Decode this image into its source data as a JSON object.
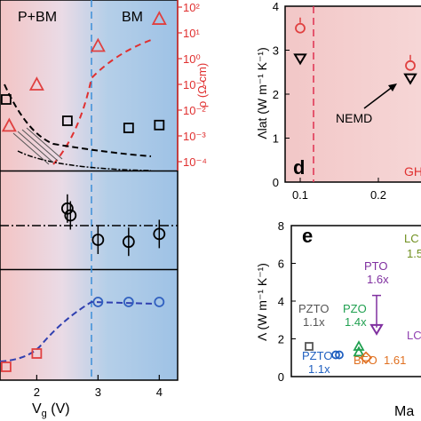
{
  "chart_data": [
    {
      "type": "scatter",
      "panel": "left-stack",
      "top_subplot": {
        "region_labels": [
          "P+BM",
          "BM"
        ],
        "right_ylabel": "ρ (Ω cm)",
        "right_ylim_log": [
          -4,
          2
        ],
        "right_ticks": [
          "10²",
          "10¹",
          "10⁰",
          "10⁻¹",
          "10⁻²",
          "10⁻³",
          "10⁻⁴"
        ],
        "series": [
          {
            "marker": "triangle",
            "color": "#e04040",
            "x": [
              1.55,
              2.0,
              3.0,
              4.0
            ],
            "log_y": [
              -2.6,
              -1.0,
              0.5,
              1.55
            ]
          },
          {
            "marker": "square",
            "color": "#000000",
            "x": [
              1.0,
              1.5,
              2.5,
              3.5,
              4.0
            ],
            "y": [
              0.6,
              0.5,
              0.35,
              0.3,
              0.32
            ]
          }
        ]
      },
      "middle_subplot": {
        "series": [
          {
            "marker": "circle",
            "color": "#000000",
            "x": [
              2.5,
              2.55,
              3.0,
              3.5,
              4.0
            ],
            "y": [
              0.62,
              0.55,
              0.3,
              0.28,
              0.36
            ]
          }
        ]
      },
      "bottom_subplot": {
        "xlabel": "V_g (V)",
        "x_ticks": [
          "2",
          "3",
          "4"
        ],
        "xlim": [
          1.4,
          4.3
        ],
        "series": [
          {
            "marker": "square",
            "color": "#e04040",
            "x": [
              1.5,
              2.0
            ],
            "y": [
              0.15,
              0.3
            ]
          },
          {
            "marker": "circle",
            "color": "#3060c0",
            "x": [
              3.0,
              3.5,
              4.0
            ],
            "y": [
              0.88,
              0.88,
              0.88
            ]
          }
        ],
        "dashed_vertical_x": 3.0
      }
    },
    {
      "type": "scatter",
      "panel": "d",
      "letter": "d",
      "ylabel": "Λlat (W m⁻¹ K⁻¹)",
      "ylim": [
        0,
        4
      ],
      "y_ticks": [
        "0",
        "1",
        "2",
        "3",
        "4"
      ],
      "x_ticks": [
        "0.1",
        "0.2"
      ],
      "annotation": "NEMD",
      "region_text": "GH",
      "series": [
        {
          "marker": "circle",
          "color": "#e04040",
          "x": [
            0.1,
            0.25
          ],
          "y": [
            3.5,
            2.65
          ]
        },
        {
          "marker": "triangle-down",
          "color": "#000000",
          "x": [
            0.1,
            0.25
          ],
          "y": [
            2.8,
            2.35
          ]
        }
      ]
    },
    {
      "type": "scatter",
      "panel": "e",
      "letter": "e",
      "ylabel": "Λ (W m⁻¹ K⁻¹)",
      "ylim": [
        0,
        8
      ],
      "y_ticks": [
        "0",
        "2",
        "4",
        "6",
        "8"
      ],
      "xlabel_partial": "Ma",
      "labels": [
        {
          "text": "PZTO",
          "ratio": "1.1x",
          "color": "#555555"
        },
        {
          "text": "PZTO",
          "ratio": "1.1x",
          "color": "#2060c0"
        },
        {
          "text": "PZO",
          "ratio": "1.4x",
          "color": "#20a050"
        },
        {
          "text": "PTO",
          "ratio": "1.6x",
          "color": "#8030a0"
        },
        {
          "text": "BFO",
          "ratio": "1.61",
          "color": "#e07020"
        },
        {
          "text": "LC",
          "ratio": "1.5",
          "color": "#709020"
        },
        {
          "text": "LC",
          "ratio": "",
          "color": "#9040b0"
        }
      ]
    }
  ]
}
